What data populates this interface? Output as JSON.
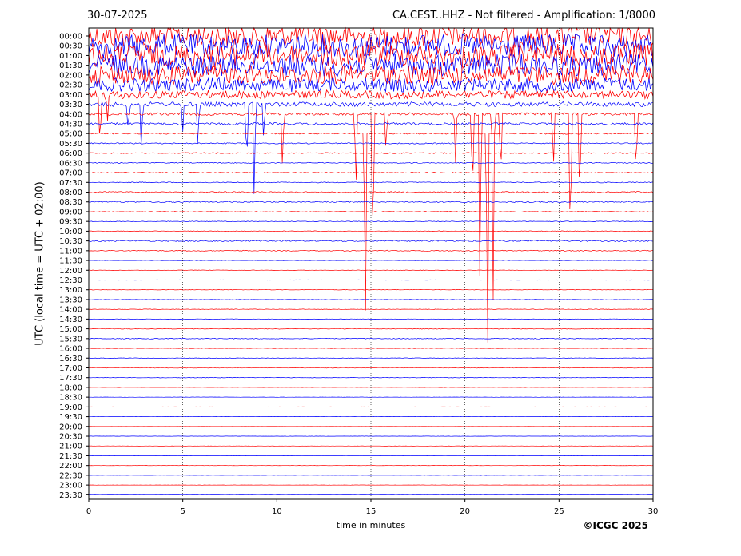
{
  "header": {
    "date": "30-07-2025",
    "title": "CA.CEST..HHZ - Not filtered - Amplification: 1/8000"
  },
  "footer": {
    "copyright": "©ICGC 2025"
  },
  "colors": {
    "odd_trace": "#ff0000",
    "even_trace": "#0000ff",
    "grid": "#000000"
  },
  "chart_data": {
    "type": "line",
    "subtype": "helicorder-seismogram",
    "xlabel": "time in minutes",
    "ylabel": "UTC (local time = UTC + 02:00)",
    "xlim": [
      0,
      30
    ],
    "x_ticks": [
      "0",
      "5",
      "10",
      "15",
      "20",
      "25",
      "30"
    ],
    "y_ticks": [
      "00:00",
      "00:30",
      "01:00",
      "01:30",
      "02:00",
      "02:30",
      "03:00",
      "03:30",
      "04:00",
      "04:30",
      "05:00",
      "05:30",
      "06:00",
      "06:30",
      "07:00",
      "07:30",
      "08:00",
      "08:30",
      "09:00",
      "09:30",
      "10:00",
      "10:30",
      "11:00",
      "11:30",
      "12:00",
      "12:30",
      "13:00",
      "13:30",
      "14:00",
      "14:30",
      "15:00",
      "15:30",
      "16:00",
      "16:30",
      "17:00",
      "17:30",
      "18:00",
      "18:30",
      "19:00",
      "19:30",
      "20:00",
      "20:30",
      "21:00",
      "21:30",
      "22:00",
      "22:30",
      "23:00",
      "23:30"
    ],
    "grid": "vertical dotted lines at each 5 minutes",
    "trace_colors": [
      "red",
      "blue"
    ],
    "trace_activity": [
      {
        "line": "00:00",
        "level": 1.0
      },
      {
        "line": "00:30",
        "level": 1.0
      },
      {
        "line": "01:00",
        "level": 1.0
      },
      {
        "line": "01:30",
        "level": 0.95
      },
      {
        "line": "02:00",
        "level": 0.85
      },
      {
        "line": "02:30",
        "level": 0.6
      },
      {
        "line": "03:00",
        "level": 0.35
      },
      {
        "line": "03:30",
        "level": 0.2
      },
      {
        "line": "04:00",
        "level": 0.12
      },
      {
        "line": "04:30",
        "level": 0.1
      },
      {
        "line": "05:00",
        "level": 0.06
      },
      {
        "line": "05:30",
        "level": 0.05
      },
      {
        "line": "06:00",
        "level": 0.05
      },
      {
        "line": "06:30",
        "level": 0.04
      },
      {
        "line": "07:00",
        "level": 0.04
      },
      {
        "line": "07:30",
        "level": 0.04
      },
      {
        "line": "08:00",
        "level": 0.06
      },
      {
        "line": "08:30",
        "level": 0.06
      },
      {
        "line": "09:00",
        "level": 0.03
      },
      {
        "line": "09:30",
        "level": 0.03
      },
      {
        "line": "10:00",
        "level": 0.03
      },
      {
        "line": "10:30",
        "level": 0.06
      },
      {
        "line": "11:00",
        "level": 0.04
      },
      {
        "line": "11:30",
        "level": 0.02
      },
      {
        "line": "12:00",
        "level": 0.02
      },
      {
        "line": "12:30",
        "level": 0.02
      },
      {
        "line": "13:00",
        "level": 0.02
      },
      {
        "line": "13:30",
        "level": 0.02
      },
      {
        "line": "14:00",
        "level": 0.02
      },
      {
        "line": "14:30",
        "level": 0.02
      },
      {
        "line": "15:00",
        "level": 0.03
      },
      {
        "line": "15:30",
        "level": 0.03
      },
      {
        "line": "16:00",
        "level": 0.02
      },
      {
        "line": "16:30",
        "level": 0.02
      },
      {
        "line": "17:00",
        "level": 0.03
      },
      {
        "line": "17:30",
        "level": 0.02
      },
      {
        "line": "18:00",
        "level": 0.01
      },
      {
        "line": "18:30",
        "level": 0.01
      },
      {
        "line": "19:00",
        "level": 0.01
      },
      {
        "line": "19:30",
        "level": 0.01
      },
      {
        "line": "20:00",
        "level": 0.01
      },
      {
        "line": "20:30",
        "level": 0.01
      },
      {
        "line": "21:00",
        "level": 0.01
      },
      {
        "line": "21:30",
        "level": 0.01
      },
      {
        "line": "22:00",
        "level": 0.01
      },
      {
        "line": "22:30",
        "level": 0.01
      },
      {
        "line": "23:00",
        "level": 0.01
      },
      {
        "line": "23:30",
        "level": 0.01
      }
    ],
    "spikes": [
      {
        "line": "03:00",
        "minute": 0.6,
        "depth": 6
      },
      {
        "line": "03:00",
        "minute": 1.0,
        "depth": 3
      },
      {
        "line": "03:30",
        "minute": 2.1,
        "depth": 3
      },
      {
        "line": "03:30",
        "minute": 2.8,
        "depth": 5
      },
      {
        "line": "03:30",
        "minute": 5.0,
        "depth": 3
      },
      {
        "line": "03:30",
        "minute": 5.8,
        "depth": 5
      },
      {
        "line": "03:30",
        "minute": 8.4,
        "depth": 7
      },
      {
        "line": "03:30",
        "minute": 8.8,
        "depth": 11
      },
      {
        "line": "03:30",
        "minute": 9.3,
        "depth": 4
      },
      {
        "line": "04:00",
        "minute": 10.3,
        "depth": 6
      },
      {
        "line": "04:00",
        "minute": 14.2,
        "depth": 8
      },
      {
        "line": "04:00",
        "minute": 15.1,
        "depth": 16
      },
      {
        "line": "04:00",
        "minute": 15.8,
        "depth": 4
      },
      {
        "line": "04:00",
        "minute": 19.5,
        "depth": 5
      },
      {
        "line": "04:00",
        "minute": 20.4,
        "depth": 9
      },
      {
        "line": "04:00",
        "minute": 20.8,
        "depth": 20
      },
      {
        "line": "04:00",
        "minute": 21.5,
        "depth": 19
      },
      {
        "line": "04:00",
        "minute": 21.9,
        "depth": 7
      },
      {
        "line": "04:00",
        "minute": 24.7,
        "depth": 6
      },
      {
        "line": "04:00",
        "minute": 25.6,
        "depth": 15
      },
      {
        "line": "04:00",
        "minute": 29.1,
        "depth": 7
      },
      {
        "line": "04:00",
        "minute": 26.1,
        "depth": 10
      },
      {
        "line": "05:00",
        "minute": 14.7,
        "depth": 22
      },
      {
        "line": "05:00",
        "minute": 21.2,
        "depth": 26
      }
    ]
  }
}
